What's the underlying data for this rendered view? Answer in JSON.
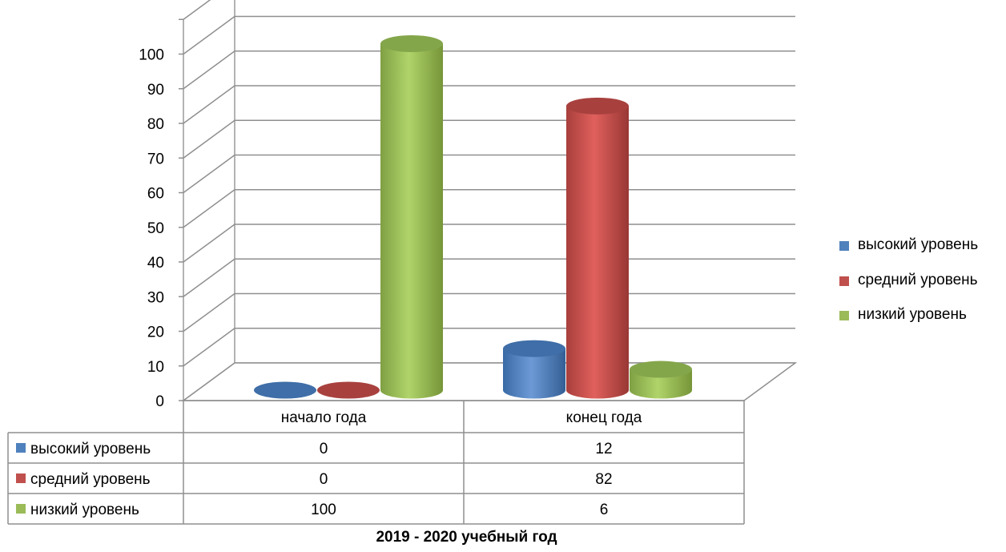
{
  "chart_data": {
    "type": "bar",
    "categories": [
      "начало года",
      "конец года"
    ],
    "series": [
      {
        "name": "высокий уровень",
        "values": [
          0,
          12
        ],
        "color": "#4F81BD"
      },
      {
        "name": "средний уровень",
        "values": [
          0,
          82
        ],
        "color": "#C0504D"
      },
      {
        "name": "низкий уровень",
        "values": [
          100,
          6
        ],
        "color": "#9BBB59"
      }
    ],
    "yticks": [
      0,
      10,
      20,
      30,
      40,
      50,
      60,
      70,
      80,
      90,
      100
    ],
    "ylim": [
      0,
      110
    ],
    "xlabel": "2019 - 2020 учебный год",
    "legend_position": "right",
    "data_table": true,
    "grid": true,
    "style": "3d-cylinder"
  }
}
